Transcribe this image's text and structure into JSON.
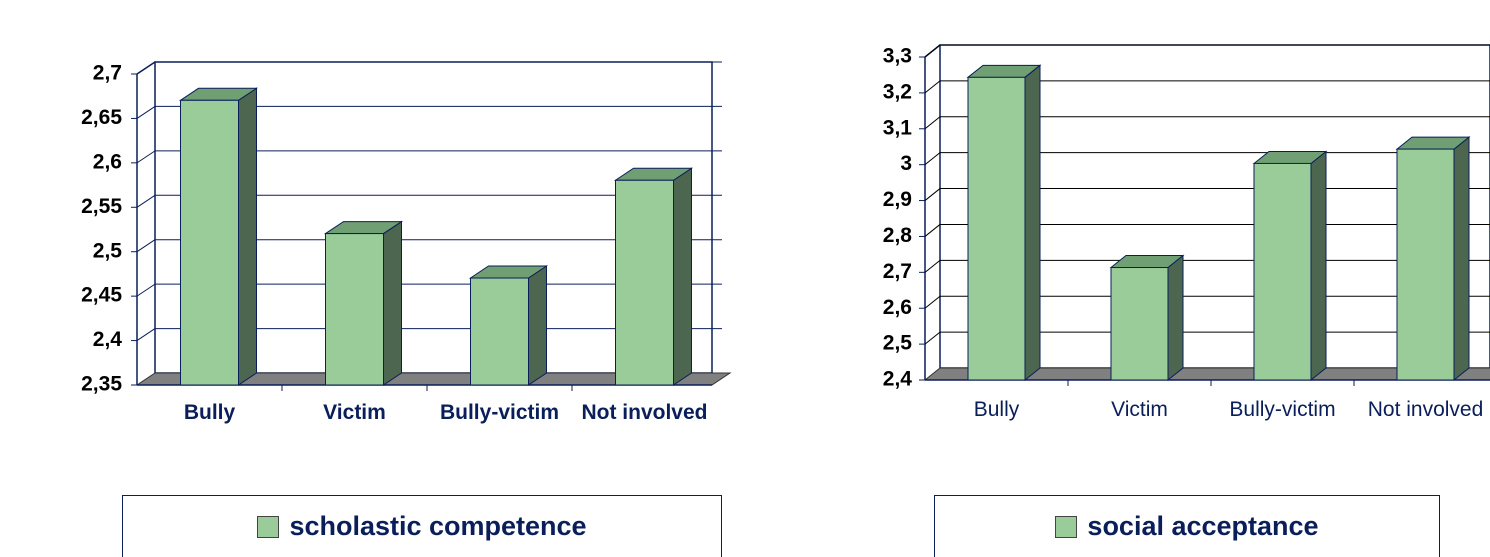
{
  "chart_data": [
    {
      "type": "bar3d",
      "categories": [
        "Bully",
        "Victim",
        "Bully-victim",
        "Not involved"
      ],
      "series": [
        {
          "name": "scholastic competence",
          "color": "#99cc99",
          "values": [
            2.665,
            2.515,
            2.465,
            2.575
          ]
        }
      ],
      "ylim": [
        2.35,
        2.7
      ],
      "yticks": [
        {
          "value": 2.35,
          "label": "2,35"
        },
        {
          "value": 2.4,
          "label": "2,4"
        },
        {
          "value": 2.45,
          "label": "2,45"
        },
        {
          "value": 2.5,
          "label": "2,5"
        },
        {
          "value": 2.55,
          "label": "2,55"
        },
        {
          "value": 2.6,
          "label": "2,6"
        },
        {
          "value": 2.65,
          "label": "2,65"
        },
        {
          "value": 2.7,
          "label": "2,7"
        }
      ],
      "grid": true
    },
    {
      "type": "bar3d",
      "categories": [
        "Bully",
        "Victim",
        "Bully-victim",
        "Not involved"
      ],
      "series": [
        {
          "name": "social acceptance",
          "color": "#99cc99",
          "values": [
            3.23,
            2.7,
            2.99,
            3.03
          ]
        }
      ],
      "ylim": [
        2.4,
        3.3
      ],
      "yticks": [
        {
          "value": 2.4,
          "label": "2,4"
        },
        {
          "value": 2.5,
          "label": "2,5"
        },
        {
          "value": 2.6,
          "label": "2,6"
        },
        {
          "value": 2.7,
          "label": "2,7"
        },
        {
          "value": 2.8,
          "label": "2,8"
        },
        {
          "value": 2.9,
          "label": "2,9"
        },
        3,
        {
          "value": 3.1,
          "label": "3,1"
        },
        {
          "value": 3.2,
          "label": "3,2"
        },
        {
          "value": 3.3,
          "label": "3,3"
        }
      ],
      "grid": true
    }
  ]
}
